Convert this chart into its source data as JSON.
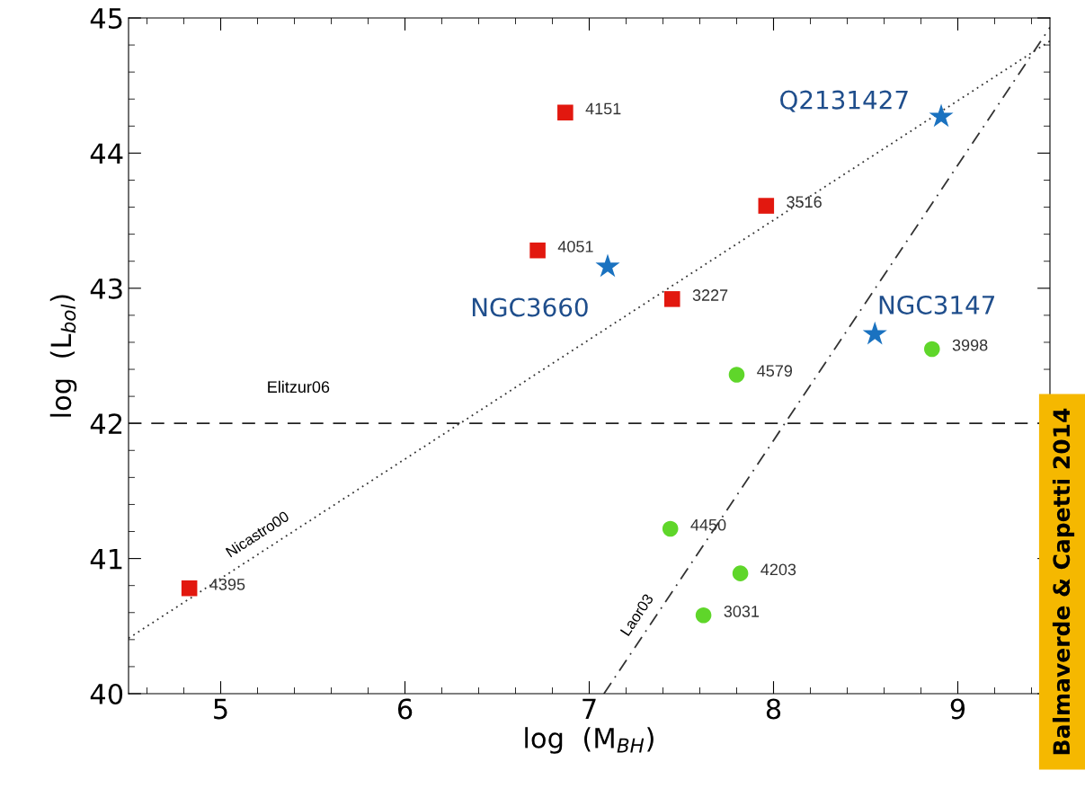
{
  "chart_data": {
    "type": "scatter",
    "xlabel": "log  (M$_{BH}$)",
    "ylabel": "log  (L$_{bol}$)",
    "xlim": [
      4.5,
      9.5
    ],
    "xticks": [
      5,
      6,
      7,
      8,
      9
    ],
    "ylim": [
      40,
      45
    ],
    "yticks": [
      40,
      41,
      42,
      43,
      44,
      45
    ],
    "grid": false,
    "series": [
      {
        "marker": "square",
        "color": "#e2180f",
        "x": [
          4.83,
          6.72,
          6.87,
          7.45,
          7.96
        ],
        "values": [
          40.78,
          43.28,
          44.3,
          42.92,
          43.61
        ]
      },
      {
        "marker": "circle",
        "color": "#5fd62a",
        "x": [
          7.44,
          7.82,
          7.62,
          7.8,
          8.86
        ],
        "values": [
          41.22,
          40.89,
          40.58,
          42.36,
          42.55
        ]
      },
      {
        "marker": "star",
        "color": "#1a72c0",
        "x": [
          7.1,
          8.91,
          8.55
        ],
        "values": [
          43.16,
          44.27,
          42.66
        ]
      },
      {
        "type": "line",
        "name": "Nicastro00",
        "line_style": "dotted",
        "color": "#333333",
        "x": [
          4.5,
          9.5
        ],
        "values": [
          40.41,
          44.83
        ]
      },
      {
        "type": "line",
        "name": "Laor03",
        "line_style": "dashdot",
        "color": "#333333",
        "x": [
          7.08,
          9.5
        ],
        "values": [
          40.0,
          44.93
        ]
      }
    ],
    "ref_lines": [
      {
        "axis": "y",
        "value": 42,
        "label": "Elitzur06",
        "line_style": "dashed",
        "color": "#222222"
      }
    ],
    "annotations": [
      {
        "text": "4395",
        "x": 4.83,
        "y": 40.78
      },
      {
        "text": "4051",
        "x": 6.72,
        "y": 43.28
      },
      {
        "text": "4151",
        "x": 6.87,
        "y": 44.3
      },
      {
        "text": "3227",
        "x": 7.45,
        "y": 42.92
      },
      {
        "text": "3516",
        "x": 7.96,
        "y": 43.61
      },
      {
        "text": "4450",
        "x": 7.44,
        "y": 41.22
      },
      {
        "text": "4203",
        "x": 7.82,
        "y": 40.89
      },
      {
        "text": "3031",
        "x": 7.62,
        "y": 40.58
      },
      {
        "text": "4579",
        "x": 7.8,
        "y": 42.36
      },
      {
        "text": "3998",
        "x": 8.86,
        "y": 42.55
      },
      {
        "text": "NGC3660",
        "x": 7.1,
        "y": 43.16
      },
      {
        "text": "Q2131427",
        "x": 8.91,
        "y": 44.27
      },
      {
        "text": "NGC3147",
        "x": 8.55,
        "y": 42.66
      },
      "Balmaverde & Capetti 2014"
    ]
  }
}
